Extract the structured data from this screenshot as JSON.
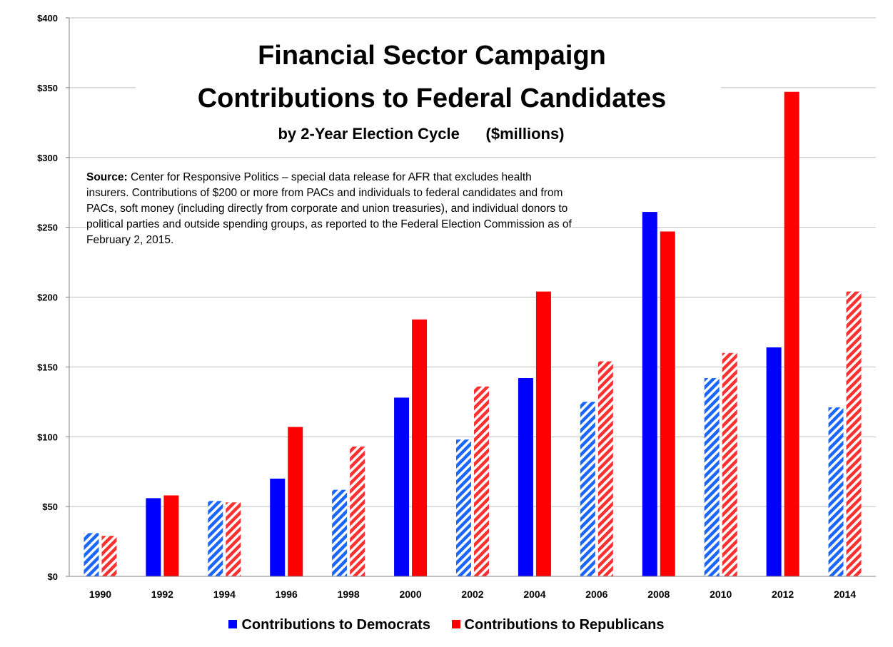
{
  "chart_data": {
    "type": "bar",
    "title": [
      "Financial Sector Campaign",
      "Contributions to Federal Candidates"
    ],
    "subtitle": "by 2-Year Election Cycle      ($millions)",
    "xlabel": "",
    "ylabel": "",
    "ylim": [
      0,
      400
    ],
    "yticks": [
      "$0",
      "$50",
      "$100",
      "$150",
      "$200",
      "$250",
      "$300",
      "$350",
      "$400"
    ],
    "grid": true,
    "legend_position": "bottom",
    "categories": [
      "1990",
      "1992",
      "1994",
      "1996",
      "1998",
      "2000",
      "2002",
      "2004",
      "2006",
      "2008",
      "2010",
      "2012",
      "2014"
    ],
    "hatched_categories": [
      "1990",
      "1994",
      "1998",
      "2002",
      "2006",
      "2010",
      "2014"
    ],
    "series": [
      {
        "name": "Contributions to Democrats",
        "color": "#0000ff",
        "hatch_color": "#4da6ff",
        "values": [
          31,
          56,
          54,
          70,
          62,
          128,
          98,
          142,
          125,
          261,
          142,
          164,
          121
        ]
      },
      {
        "name": "Contributions to Republicans",
        "color": "#ff0000",
        "hatch_color": "#ff8080",
        "values": [
          29,
          58,
          53,
          107,
          93,
          184,
          136,
          204,
          154,
          247,
          160,
          347,
          204
        ]
      }
    ]
  },
  "source": {
    "label": "Source:",
    "text": " Center for Responsive Politics  –  special data release for AFR that excludes health insurers. Contributions of $200 or more from PACs and individuals to federal candidates and from PACs, soft money (including directly from corporate and union treasuries), and individual donors to political parties and outside spending groups, as reported to the Federal Election Commission as of February 2, 2015."
  }
}
